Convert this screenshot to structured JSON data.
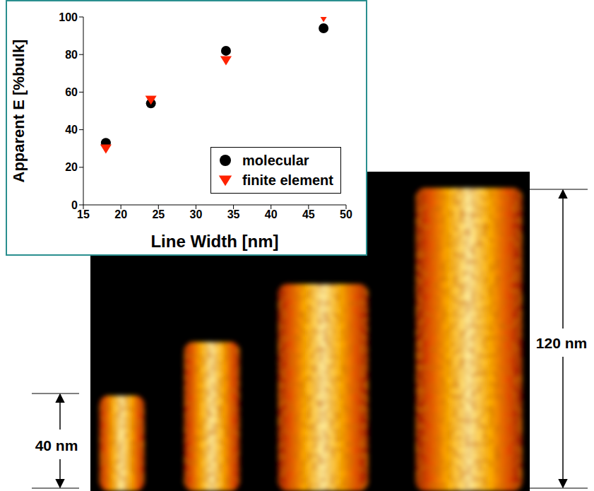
{
  "chart_data": {
    "type": "scatter",
    "xlabel": "Line Width [nm]",
    "ylabel": "Apparent E [%bulk]",
    "xlim": [
      15,
      50
    ],
    "xticks": [
      15,
      20,
      25,
      30,
      35,
      40,
      45,
      50
    ],
    "ylim": [
      0,
      100
    ],
    "yticks": [
      0,
      20,
      40,
      60,
      80,
      100
    ],
    "legend": "lower right",
    "series": [
      {
        "name": "molecular",
        "color": "#000000",
        "marker": "circle",
        "x": [
          18,
          24,
          34,
          47
        ],
        "values": [
          33,
          54,
          82,
          94
        ]
      },
      {
        "name": "finite element",
        "color": "#ff2200",
        "marker": "triangle_down",
        "x": [
          18,
          24,
          34,
          47
        ],
        "values": [
          30,
          56,
          77,
          100
        ]
      }
    ],
    "annotations": [
      "40 nm",
      "120 nm"
    ]
  }
}
